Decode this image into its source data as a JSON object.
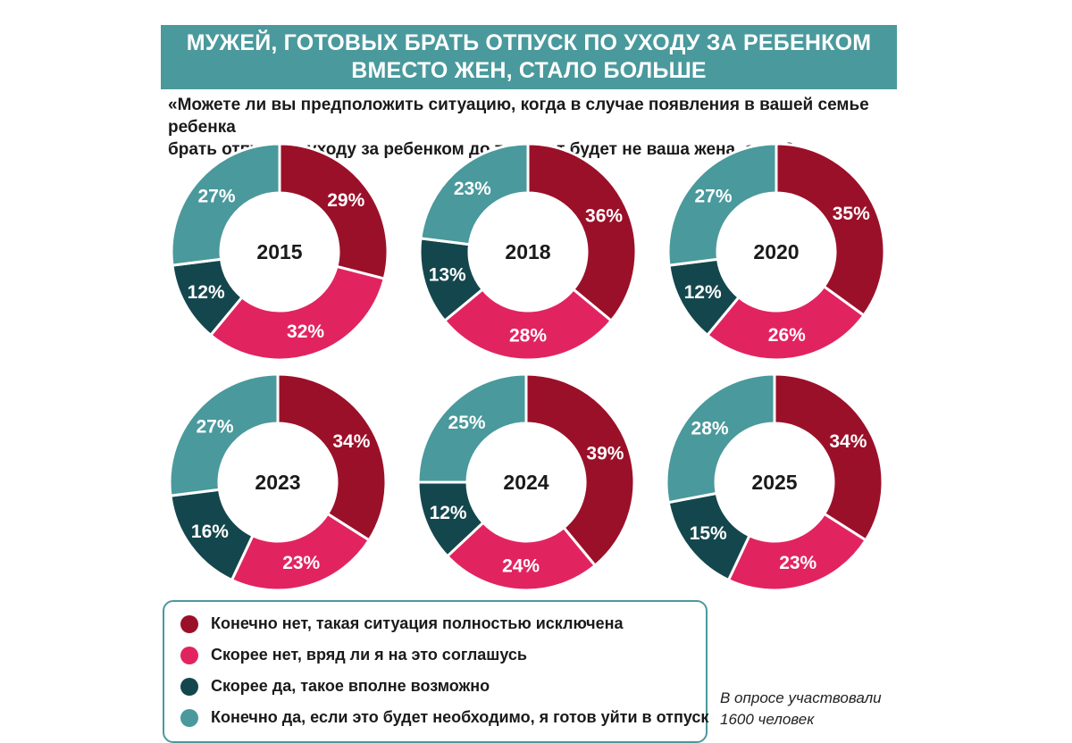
{
  "title": {
    "line1": "МУЖЕЙ, ГОТОВЫХ БРАТЬ ОТПУСК ПО УХОДУ ЗА РЕБЕНКОМ",
    "line2": "ВМЕСТО ЖЕН, СТАЛО БОЛЬШЕ"
  },
  "question": {
    "line1": "«Можете ли вы предположить ситуацию, когда в случае появления в вашей семье ребенка",
    "line2": "брать отпуск по уходу за ребенком до трех лет будет не ваша жена, а вы?»"
  },
  "colors": {
    "definitely_no": "#9b1029",
    "rather_no": "#e12460",
    "rather_yes": "#14474d",
    "definitely_yes": "#4a999c",
    "accent": "#4a999c"
  },
  "chart_data": {
    "type": "pie",
    "variant": "donut",
    "categories": [
      "Конечно нет, такая ситуация полностью исключена",
      "Скорее нет, вряд ли я на это соглашусь",
      "Скорее да, такое вполне возможно",
      "Конечно да, если это будет необходимо, я готов уйти в отпуск"
    ],
    "series": [
      {
        "name": "2015",
        "values": [
          29,
          32,
          12,
          27
        ]
      },
      {
        "name": "2018",
        "values": [
          36,
          28,
          13,
          23
        ]
      },
      {
        "name": "2020",
        "values": [
          35,
          26,
          12,
          27
        ]
      },
      {
        "name": "2023",
        "values": [
          34,
          23,
          16,
          27
        ]
      },
      {
        "name": "2024",
        "values": [
          39,
          24,
          12,
          25
        ]
      },
      {
        "name": "2025",
        "values": [
          34,
          23,
          15,
          28
        ]
      }
    ],
    "value_suffix": "%",
    "legend_position": "bottom"
  },
  "legend": {
    "items": [
      {
        "label": "Конечно нет, такая ситуация полностью исключена",
        "color": "#9b1029"
      },
      {
        "label": "Скорее нет, вряд ли я на это соглашусь",
        "color": "#e12460"
      },
      {
        "label": "Скорее да, такое вполне возможно",
        "color": "#14474d"
      },
      {
        "label": "Конечно да, если это будет необходимо, я готов уйти в отпуск",
        "color": "#4a999c"
      }
    ]
  },
  "note": {
    "line1": "В опросе участвовали",
    "line2": "1600 человек"
  }
}
